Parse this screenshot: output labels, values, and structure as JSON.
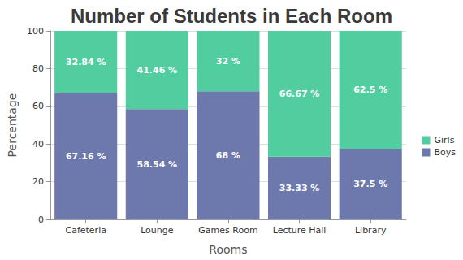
{
  "chart_data": {
    "type": "bar",
    "title": "Number of Students in Each Room",
    "x_label": "Rooms",
    "y_label": "Percentage",
    "categories": [
      "Cafeteria",
      "Lounge",
      "Games Room",
      "Lecture Hall",
      "Library"
    ],
    "series": [
      {
        "name": "Boys",
        "color": "#6d78ad",
        "values": [
          67.16,
          58.54,
          68,
          33.33,
          37.5
        ],
        "value_labels": [
          "67.16 %",
          "58.54 %",
          "68 %",
          "33.33 %",
          "37.5 %"
        ]
      },
      {
        "name": "Girls",
        "color": "#51cda0",
        "values": [
          32.84,
          41.46,
          32,
          66.67,
          62.5
        ],
        "value_labels": [
          "32.84 %",
          "41.46 %",
          "32 %",
          "66.67 %",
          "62.5 %"
        ]
      }
    ],
    "ylim": [
      0,
      100
    ],
    "yticks": [
      0,
      20,
      40,
      60,
      80,
      100
    ],
    "stacked": true,
    "data_labels": true,
    "grid": true,
    "legend": "right"
  }
}
